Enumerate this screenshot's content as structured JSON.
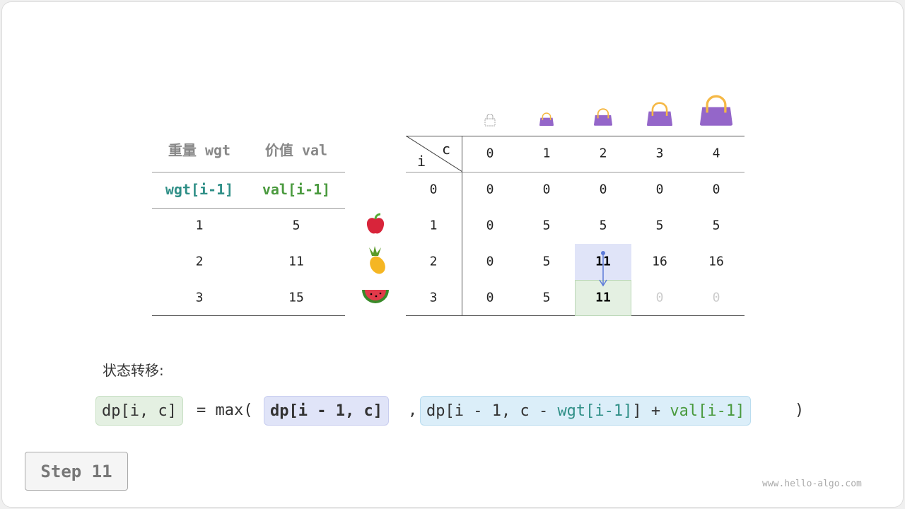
{
  "items_table": {
    "headers": [
      "重量 wgt",
      "价值 val"
    ],
    "subheaders": [
      "wgt[i-1]",
      "val[i-1]"
    ],
    "rows": [
      {
        "wgt": "1",
        "val": "5",
        "fruit": "apple"
      },
      {
        "wgt": "2",
        "val": "11",
        "fruit": "pineapple"
      },
      {
        "wgt": "3",
        "val": "15",
        "fruit": "watermelon"
      }
    ]
  },
  "dp_table": {
    "corner_row": "i",
    "corner_col": "c",
    "col_headers": [
      "0",
      "1",
      "2",
      "3",
      "4"
    ],
    "row_headers": [
      "0",
      "1",
      "2",
      "3"
    ],
    "cells": [
      [
        "0",
        "0",
        "0",
        "0",
        "0"
      ],
      [
        "0",
        "5",
        "5",
        "5",
        "5"
      ],
      [
        "0",
        "5",
        "11",
        "16",
        "16"
      ],
      [
        "0",
        "5",
        "11",
        "0",
        "0"
      ]
    ],
    "highlight_source": {
      "row": 2,
      "col": 2,
      "color": "#e0e4f8"
    },
    "highlight_target": {
      "row": 3,
      "col": 2,
      "color": "#e4f0e2"
    },
    "unfilled": [
      [
        3,
        3
      ],
      [
        3,
        4
      ]
    ],
    "bag_icons": "bag-icon"
  },
  "formula": {
    "label": "状态转移:",
    "lhs": "dp[i, c]",
    "eq": "= max(",
    "term1": "dp[i - 1, c]",
    "comma": ",",
    "term2_a": "dp[i - 1, c - ",
    "term2_wgt": "wgt[i-1]",
    "term2_b": "] + ",
    "term2_val": "val[i-1]",
    "close": ")"
  },
  "step_label": "Step 11",
  "watermark": "www.hello-algo.com",
  "colors": {
    "green_box": "#e4f0e2",
    "purple_box": "#e0e4f8",
    "blue_box": "#dbeef9",
    "teal": "#2f8f87",
    "green": "#4a9a3e",
    "bag": "#9466c9"
  }
}
